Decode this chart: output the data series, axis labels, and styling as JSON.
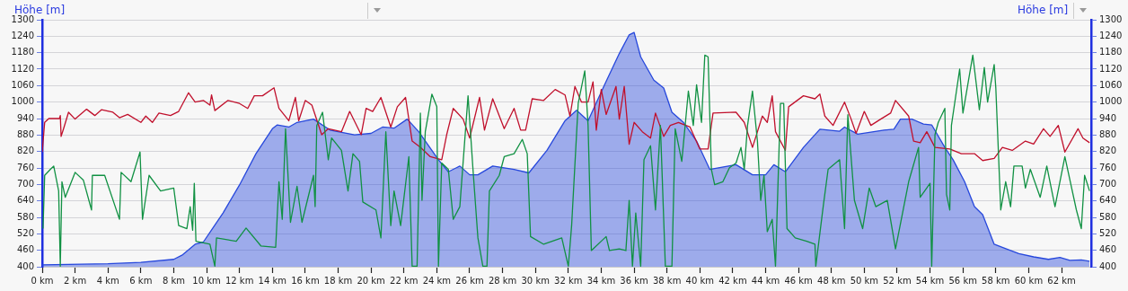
{
  "chart_data": {
    "type": "line",
    "ylabel": "Höhe [m]",
    "y2label": "Höhe [m]",
    "xlim": [
      0,
      63.8
    ],
    "xticks": [
      {
        "value": 0,
        "label": "0 km"
      },
      {
        "value": 2,
        "label": "2 km"
      },
      {
        "value": 4,
        "label": "4 km"
      },
      {
        "value": 6,
        "label": "6 km"
      },
      {
        "value": 8,
        "label": "8 km"
      },
      {
        "value": 10,
        "label": "10 km"
      },
      {
        "value": 12,
        "label": "12 km"
      },
      {
        "value": 14,
        "label": "14 km"
      },
      {
        "value": 16,
        "label": "16 km"
      },
      {
        "value": 18,
        "label": "18 km"
      },
      {
        "value": 20,
        "label": "20 km"
      },
      {
        "value": 22,
        "label": "22 km"
      },
      {
        "value": 24,
        "label": "24 km"
      },
      {
        "value": 26,
        "label": "26 km"
      },
      {
        "value": 28,
        "label": "28 km"
      },
      {
        "value": 30,
        "label": "30 km"
      },
      {
        "value": 32,
        "label": "32 km"
      },
      {
        "value": 34,
        "label": "34 km"
      },
      {
        "value": 36,
        "label": "36 km"
      },
      {
        "value": 38,
        "label": "38 km"
      },
      {
        "value": 40,
        "label": "40 km"
      },
      {
        "value": 42,
        "label": "42 km"
      },
      {
        "value": 44,
        "label": "44 km"
      },
      {
        "value": 46,
        "label": "46 km"
      },
      {
        "value": 48,
        "label": "48 km"
      },
      {
        "value": 50,
        "label": "50 km"
      },
      {
        "value": 52,
        "label": "52 km"
      },
      {
        "value": 54,
        "label": "54 km"
      },
      {
        "value": 56,
        "label": "56 km"
      },
      {
        "value": 58,
        "label": "58 km"
      },
      {
        "value": 60,
        "label": "60 km"
      },
      {
        "value": 62,
        "label": "62 km"
      }
    ],
    "ylim": [
      400,
      1300
    ],
    "yticks": [
      400,
      460,
      520,
      580,
      640,
      700,
      760,
      820,
      880,
      940,
      1000,
      1060,
      1120,
      1180,
      1240,
      1300
    ],
    "y2lim": [
      400,
      1300
    ],
    "y2ticks": [
      400,
      460,
      520,
      580,
      640,
      700,
      760,
      820,
      880,
      940,
      1000,
      1060,
      1120,
      1180,
      1240,
      1300
    ],
    "grid": "y",
    "marker": "none",
    "line_style": "solid",
    "series": [
      {
        "type": "area",
        "color": "#2748dc",
        "x": [
          0,
          4,
          6,
          8,
          8.5,
          9.3,
          9.8,
          11,
          12,
          13,
          14,
          14.3,
          15,
          15.5,
          16.5,
          17.5,
          19,
          20,
          20.7,
          21.4,
          22.2,
          22.9,
          24.1,
          24.7,
          25.4,
          26,
          26.5,
          27.4,
          28.7,
          29.6,
          30.7,
          31.8,
          32.5,
          33.2,
          34.2,
          35.1,
          35.7,
          36,
          36.4,
          37.2,
          37.8,
          38.3,
          39,
          39.8,
          40.6,
          42.2,
          43.2,
          44,
          44.5,
          45.2,
          46.3,
          47.3,
          48.5,
          48.8,
          49.6,
          51.2,
          51.8,
          52.2,
          52.9,
          53.6,
          54.1,
          54.9,
          55.4,
          56.1,
          56.7,
          57.2,
          57.9,
          58.5,
          59.4,
          60.3,
          61.2,
          61.9,
          62.5,
          63.2,
          63.7
        ],
        "values": [
          407,
          411,
          416,
          427,
          442,
          482,
          490,
          596,
          698,
          812,
          903,
          917,
          909,
          926,
          938,
          898,
          881,
          886,
          909,
          905,
          938,
          892,
          790,
          746,
          767,
          735,
          735,
          767,
          755,
          742,
          824,
          932,
          970,
          932,
          1063,
          1177,
          1245,
          1254,
          1165,
          1080,
          1051,
          963,
          926,
          858,
          755,
          772,
          735,
          735,
          772,
          746,
          835,
          901,
          894,
          909,
          883,
          898,
          901,
          938,
          938,
          920,
          917,
          835,
          790,
          710,
          619,
          590,
          482,
          468,
          448,
          436,
          427,
          434,
          423,
          425,
          420
        ]
      },
      {
        "type": "line",
        "color": "#c0102c",
        "x": [
          0,
          0.15,
          0.4,
          1.05,
          1.1,
          1.15,
          1.3,
          1.6,
          2,
          2.7,
          3.2,
          3.6,
          4.3,
          4.7,
          5.2,
          6,
          6.3,
          6.7,
          7.1,
          7.8,
          8.3,
          8.9,
          9.3,
          9.8,
          10.2,
          10.3,
          10.5,
          11.3,
          12,
          12.5,
          12.9,
          13.4,
          14.1,
          14.4,
          15,
          15.4,
          15.6,
          16,
          16.4,
          17,
          17.4,
          18.2,
          18.7,
          19.4,
          19.7,
          20.1,
          20.6,
          21.2,
          21.6,
          22.1,
          22.5,
          23,
          23.6,
          24.3,
          24.6,
          25,
          25.6,
          26,
          26.6,
          26.9,
          27.4,
          28.1,
          28.7,
          29.1,
          29.4,
          29.8,
          30.5,
          31.2,
          31.8,
          32.1,
          32.4,
          32.8,
          33.2,
          33.5,
          33.7,
          34,
          34.3,
          34.9,
          35.1,
          35.4,
          35.7,
          36,
          36.5,
          37,
          37.3,
          37.8,
          38.2,
          38.7,
          39.4,
          40,
          40.5,
          40.8,
          42.2,
          42.7,
          43.2,
          43.8,
          44.1,
          44.4,
          44.6,
          45.2,
          45.4,
          46.3,
          47,
          47.3,
          47.6,
          48.1,
          48.8,
          49.2,
          49.5,
          50,
          50.4,
          51,
          51.6,
          51.9,
          52.7,
          53,
          53.4,
          53.8,
          54.3,
          55.2,
          55.9,
          56.7,
          57.2,
          57.9,
          58.4,
          59,
          59.8,
          60.3,
          60.9,
          61.3,
          61.8,
          62.2,
          63,
          63.3,
          63.7
        ],
        "values": [
          818,
          926,
          940,
          940,
          951,
          875,
          903,
          963,
          938,
          974,
          951,
          972,
          963,
          943,
          955,
          926,
          949,
          926,
          960,
          951,
          966,
          1034,
          1000,
          1006,
          989,
          1026,
          969,
          1006,
          995,
          977,
          1023,
          1023,
          1052,
          977,
          932,
          1017,
          932,
          1006,
          989,
          881,
          903,
          892,
          966,
          881,
          977,
          966,
          1017,
          909,
          983,
          1017,
          858,
          835,
          801,
          790,
          881,
          977,
          938,
          869,
          1017,
          898,
          1012,
          903,
          977,
          898,
          898,
          1012,
          1006,
          1046,
          1026,
          949,
          1057,
          1000,
          1000,
          1074,
          898,
          1046,
          955,
          1057,
          938,
          1057,
          846,
          926,
          892,
          869,
          960,
          875,
          915,
          926,
          909,
          829,
          829,
          960,
          963,
          926,
          835,
          949,
          926,
          1023,
          892,
          824,
          983,
          1023,
          1012,
          1029,
          949,
          915,
          1000,
          938,
          886,
          966,
          915,
          938,
          960,
          1006,
          949,
          858,
          852,
          892,
          835,
          829,
          812,
          812,
          787,
          795,
          835,
          824,
          858,
          847,
          903,
          875,
          915,
          818,
          903,
          869,
          852
        ]
      },
      {
        "type": "line",
        "color": "#119143",
        "x": [
          0.05,
          0.15,
          0.5,
          0.7,
          1,
          1.1,
          1.2,
          1.4,
          2,
          2.5,
          3,
          3.05,
          3.8,
          4.7,
          4.8,
          5.4,
          5.95,
          6.1,
          6.5,
          7.2,
          8,
          8.3,
          8.8,
          9,
          9.15,
          9.25,
          9.35,
          10.2,
          10.5,
          10.6,
          11.8,
          12.4,
          13.3,
          14.2,
          14.4,
          14.6,
          14.8,
          15.1,
          15.5,
          15.8,
          16.5,
          16.6,
          16.7,
          17.05,
          17.4,
          17.6,
          18.2,
          18.6,
          18.9,
          19.3,
          19.5,
          20.3,
          20.6,
          20.9,
          21.2,
          21.4,
          21.8,
          22.3,
          22.5,
          22.8,
          23,
          23.1,
          23.3,
          23.7,
          24,
          24.1,
          24.3,
          24.7,
          25,
          25.4,
          25.9,
          26.2,
          26.5,
          26.8,
          27.05,
          27.2,
          27.8,
          28.1,
          28.7,
          29.2,
          29.5,
          29.7,
          30.5,
          31.6,
          32,
          32.2,
          32.6,
          33,
          33.2,
          33.4,
          34.3,
          34.5,
          35.1,
          35.5,
          35.7,
          35.9,
          36.1,
          36.4,
          36.6,
          37,
          37.3,
          37.6,
          37.9,
          38.3,
          38.5,
          38.9,
          39.3,
          39.6,
          39.8,
          40.1,
          40.3,
          40.5,
          40.7,
          40.9,
          41.4,
          41.8,
          42.2,
          42.5,
          42.7,
          42.9,
          43.2,
          43.5,
          43.7,
          43.9,
          44.1,
          44.4,
          44.6,
          44.9,
          45.1,
          45.3,
          45.8,
          46.5,
          47,
          47.05,
          47.5,
          47.8,
          48.5,
          48.8,
          49,
          49.4,
          49.9,
          50.3,
          50.7,
          51.4,
          51.9,
          52.7,
          53.3,
          53.4,
          54,
          54.1,
          54.3,
          54.5,
          54.9,
          55,
          55.2,
          55.3,
          55.8,
          56,
          56.6,
          57,
          57.3,
          57.5,
          57.9,
          58,
          58.3,
          58.6,
          58.9,
          59.1,
          59.6,
          59.8,
          60.1,
          60.7,
          61.1,
          61.6,
          62.2,
          62.9,
          63.2,
          63.4,
          63.7
        ],
        "values": [
          539,
          733,
          755,
          767,
          676,
          402,
          710,
          653,
          744,
          716,
          607,
          733,
          733,
          573,
          744,
          710,
          818,
          573,
          733,
          676,
          687,
          550,
          539,
          619,
          533,
          704,
          493,
          482,
          402,
          505,
          493,
          541,
          476,
          471,
          710,
          573,
          903,
          562,
          693,
          562,
          733,
          619,
          915,
          963,
          790,
          869,
          824,
          676,
          812,
          784,
          636,
          607,
          505,
          892,
          550,
          676,
          550,
          801,
          402,
          402,
          960,
          642,
          892,
          1029,
          983,
          402,
          778,
          755,
          573,
          619,
          1023,
          755,
          505,
          402,
          402,
          676,
          733,
          801,
          812,
          864,
          812,
          510,
          482,
          505,
          402,
          550,
          995,
          1114,
          915,
          459,
          510,
          459,
          465,
          459,
          642,
          402,
          596,
          402,
          790,
          841,
          607,
          915,
          402,
          402,
          903,
          784,
          1040,
          915,
          1063,
          926,
          1171,
          1165,
          755,
          699,
          710,
          761,
          778,
          835,
          755,
          915,
          1040,
          858,
          642,
          733,
          528,
          573,
          402,
          995,
          995,
          539,
          505,
          493,
          482,
          402,
          619,
          755,
          790,
          539,
          954,
          642,
          539,
          687,
          619,
          642,
          465,
          710,
          835,
          653,
          704,
          402,
          881,
          926,
          977,
          664,
          607,
          915,
          1120,
          960,
          1171,
          972,
          1126,
          1000,
          1137,
          1051,
          607,
          710,
          619,
          767,
          767,
          687,
          755,
          653,
          767,
          619,
          801,
          607,
          539,
          733,
          676
        ]
      }
    ]
  }
}
